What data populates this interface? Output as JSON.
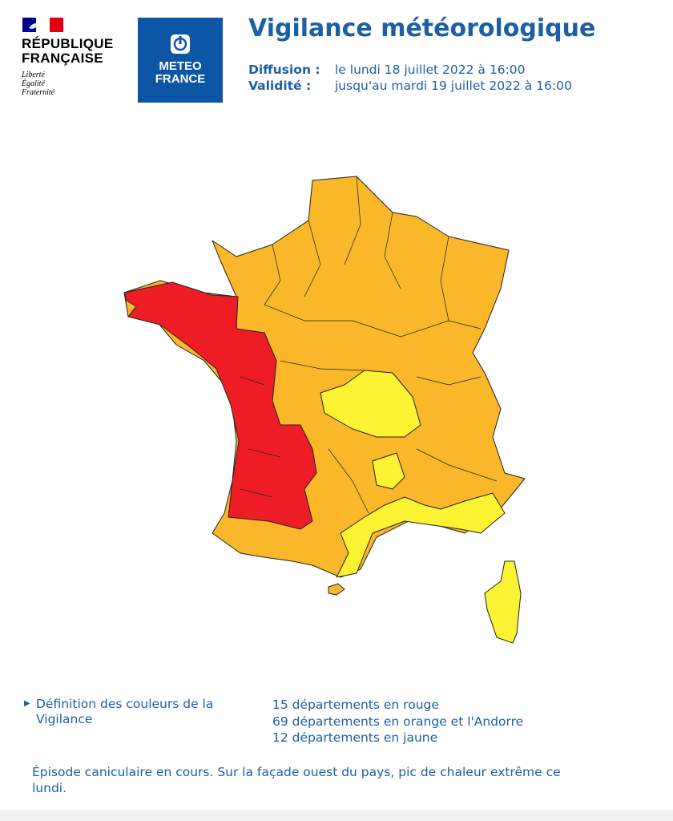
{
  "header": {
    "republic_line1": "RÉPUBLIQUE",
    "republic_line2": "FRANÇAISE",
    "motto": [
      "Liberté",
      "Égalité",
      "Fraternité"
    ],
    "logo_line1": "METEO",
    "logo_line2": "FRANCE",
    "title": "Vigilance météorologique",
    "diffusion_label": "Diffusion :",
    "diffusion_value": "le lundi 18 juillet 2022 à 16:00",
    "validity_label": "Validité :",
    "validity_value": "jusqu'au mardi 19 juillet 2022 à 16:00"
  },
  "footer": {
    "definition_link": "Définition des couleurs de la Vigilance",
    "counts": [
      "15 départements en rouge",
      "69 départements en orange et l'Andorre",
      "12 départements en jaune"
    ],
    "description": "Épisode caniculaire en cours. Sur la façade ouest du pays, pic de chaleur extrême ce lundi."
  }
}
